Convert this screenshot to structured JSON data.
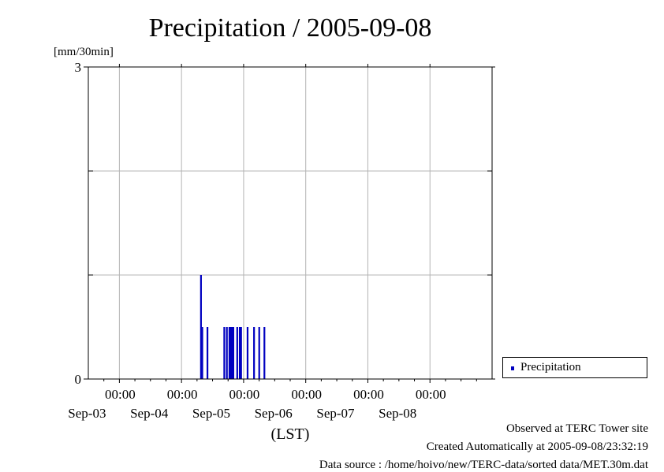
{
  "chart_data": {
    "type": "bar",
    "title": "Precipitation / 2005-09-08",
    "ylabel": "[mm/30min]",
    "xlabel": "(LST)",
    "ylim": [
      0,
      3
    ],
    "y_ticks": [
      "3",
      "0"
    ],
    "x_range": [
      "2005-09-02T12:00",
      "2005-09-08T24:00"
    ],
    "x_ticks": [
      {
        "time": "00:00",
        "date": "Sep-03",
        "at": "2005-09-03T00:00"
      },
      {
        "time": "00:00",
        "date": "Sep-04",
        "at": "2005-09-04T00:00"
      },
      {
        "time": "00:00",
        "date": "Sep-05",
        "at": "2005-09-05T00:00"
      },
      {
        "time": "00:00",
        "date": "Sep-06",
        "at": "2005-09-06T00:00"
      },
      {
        "time": "00:00",
        "date": "Sep-07",
        "at": "2005-09-07T00:00"
      },
      {
        "time": "00:00",
        "date": "Sep-08",
        "at": "2005-09-08T00:00"
      }
    ],
    "grid": true,
    "legend": "right",
    "series": [
      {
        "name": "Precipitation",
        "color": "#0000c0",
        "points": [
          {
            "t": "2005-09-04T07:30",
            "v": 1.0
          },
          {
            "t": "2005-09-04T08:00",
            "v": 0.5
          },
          {
            "t": "2005-09-04T10:00",
            "v": 0.5
          },
          {
            "t": "2005-09-04T16:30",
            "v": 0.5
          },
          {
            "t": "2005-09-04T17:30",
            "v": 0.5
          },
          {
            "t": "2005-09-04T18:30",
            "v": 0.5
          },
          {
            "t": "2005-09-04T19:00",
            "v": 0.5
          },
          {
            "t": "2005-09-04T19:30",
            "v": 0.5
          },
          {
            "t": "2005-09-04T20:00",
            "v": 0.5
          },
          {
            "t": "2005-09-04T21:30",
            "v": 0.5
          },
          {
            "t": "2005-09-04T22:30",
            "v": 0.5
          },
          {
            "t": "2005-09-04T23:00",
            "v": 0.5
          },
          {
            "t": "2005-09-05T01:30",
            "v": 0.5
          },
          {
            "t": "2005-09-05T04:00",
            "v": 0.5
          },
          {
            "t": "2005-09-05T06:00",
            "v": 0.5
          },
          {
            "t": "2005-09-05T08:00",
            "v": 0.5
          }
        ]
      }
    ]
  },
  "footer": {
    "observed": "Observed at TERC Tower site",
    "created": "Created Automatically at 2005-09-08/23:32:19",
    "source": "Data source : /home/hoivo/new/TERC-data/sorted  data/MET.30m.dat"
  }
}
